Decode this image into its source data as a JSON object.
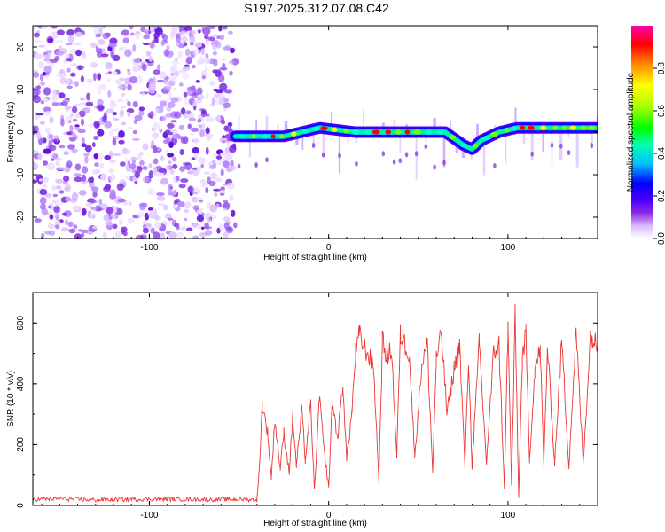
{
  "title": "S197.2025.312.07.08.C42",
  "chart_data": [
    {
      "type": "heatmap",
      "name": "spectrogram",
      "xlabel": "Height of straight line (km)",
      "ylabel": "Frequency (Hz)",
      "xlim": [
        -165,
        150
      ],
      "ylim": [
        -25,
        25
      ],
      "xticks": [
        -100,
        0,
        100
      ],
      "yticks": [
        20,
        10,
        0,
        -10,
        -20
      ],
      "noise_region_x": [
        -165,
        -52
      ],
      "signal_start_x": -52,
      "ridge": {
        "x": [
          -52,
          -45,
          -35,
          -25,
          -15,
          -5,
          5,
          15,
          25,
          35,
          45,
          55,
          65,
          75,
          80,
          85,
          95,
          105,
          115,
          125,
          135,
          150
        ],
        "freq": [
          -1,
          -1,
          -1,
          -1,
          0,
          1,
          0.5,
          0,
          0,
          0,
          0,
          0,
          0,
          -3,
          -4,
          -2,
          0,
          1,
          1,
          1,
          1,
          1
        ]
      },
      "colorbar": {
        "label": "Normalized spectral amplitude",
        "range": [
          0.0,
          1.0
        ],
        "ticks": [
          "0.0",
          "0.2",
          "0.4",
          "0.6",
          "0.8"
        ],
        "colors": [
          "#ffffff",
          "#d9b8ff",
          "#8a2be2",
          "#4b00ff",
          "#0000ff",
          "#00bfff",
          "#00ffb0",
          "#00ff00",
          "#aaff00",
          "#ffff00",
          "#ff8800",
          "#ff0000",
          "#ff00aa"
        ]
      }
    },
    {
      "type": "line",
      "name": "snr",
      "xlabel": "Height of straight line (km)",
      "ylabel": "SNR (10 * v/v)",
      "xlim": [
        -165,
        150
      ],
      "ylim": [
        0,
        700
      ],
      "xticks": [
        -100,
        0,
        100
      ],
      "yticks": [
        0,
        200,
        400,
        600
      ],
      "color": "#ee3333",
      "series": [
        {
          "name": "SNR",
          "x": [
            -165,
            -150,
            -130,
            -110,
            -90,
            -70,
            -50,
            -40,
            -39,
            -37,
            -34,
            -32,
            -30,
            -27,
            -25,
            -22,
            -20,
            -18,
            -15,
            -13,
            -10,
            -8,
            -5,
            -3,
            0,
            2,
            5,
            8,
            10,
            13,
            15,
            17,
            20,
            25,
            28,
            30,
            33,
            35,
            38,
            40,
            45,
            48,
            52,
            55,
            58,
            60,
            63,
            66,
            70,
            73,
            76,
            78,
            80,
            84,
            88,
            92,
            95,
            98,
            100,
            102,
            104,
            106,
            108,
            110,
            112,
            115,
            118,
            120,
            122,
            126,
            130,
            134,
            138,
            142,
            146,
            150
          ],
          "y": [
            20,
            22,
            18,
            20,
            21,
            19,
            20,
            18,
            90,
            330,
            240,
            90,
            280,
            120,
            240,
            110,
            290,
            130,
            310,
            150,
            330,
            50,
            360,
            200,
            60,
            340,
            220,
            400,
            150,
            310,
            500,
            560,
            520,
            460,
            80,
            540,
            480,
            520,
            160,
            560,
            500,
            160,
            470,
            530,
            110,
            480,
            560,
            300,
            450,
            530,
            130,
            480,
            130,
            530,
            140,
            500,
            530,
            60,
            580,
            70,
            620,
            30,
            480,
            560,
            150,
            450,
            510,
            130,
            520,
            140,
            540,
            130,
            570,
            140,
            560,
            520
          ]
        }
      ]
    }
  ]
}
